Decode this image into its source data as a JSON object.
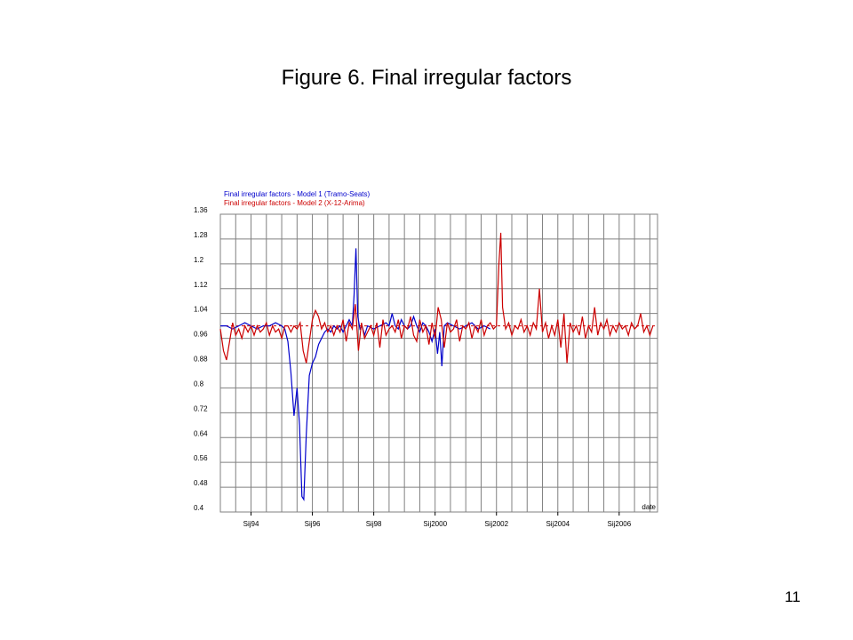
{
  "slide": {
    "title": "Figure 6. Final irregular factors",
    "page_number": "11"
  },
  "chart_data": {
    "type": "line",
    "title": "",
    "xlabel": "date",
    "ylabel": "",
    "ylim": [
      0.4,
      1.36
    ],
    "yticks": [
      "1.36",
      "1.28",
      "1.2",
      "1.12",
      "1.04",
      "0.96",
      "0.88",
      "0.8",
      "0.72",
      "0.64",
      "0.56",
      "0.48",
      "0.4"
    ],
    "xlim": [
      1993.0,
      2007.25
    ],
    "xticks": [
      {
        "label": "Sij94",
        "x": 1994.0
      },
      {
        "label": "Sij96",
        "x": 1996.0
      },
      {
        "label": "Sij98",
        "x": 1998.0
      },
      {
        "label": "Sij2000",
        "x": 2000.0
      },
      {
        "label": "Sij2002",
        "x": 2002.0
      },
      {
        "label": "Sij2004",
        "x": 2004.0
      },
      {
        "label": "Sij2006",
        "x": 2006.0
      }
    ],
    "reference_line": 1.0,
    "grid": true,
    "legend_position": "top-left",
    "series": [
      {
        "name": "Final irregular factors - Model 1 (Tramo-Seats)",
        "color": "#0000cc",
        "points": [
          [
            1993.0,
            1.0
          ],
          [
            1993.2,
            1.0
          ],
          [
            1993.4,
            0.99
          ],
          [
            1993.6,
            1.0
          ],
          [
            1993.8,
            1.01
          ],
          [
            1994.0,
            1.0
          ],
          [
            1994.2,
            0.99
          ],
          [
            1994.4,
            1.0
          ],
          [
            1994.6,
            1.0
          ],
          [
            1994.8,
            1.01
          ],
          [
            1995.0,
            1.0
          ],
          [
            1995.1,
            0.99
          ],
          [
            1995.2,
            0.95
          ],
          [
            1995.3,
            0.85
          ],
          [
            1995.4,
            0.71
          ],
          [
            1995.5,
            0.8
          ],
          [
            1995.58,
            0.68
          ],
          [
            1995.66,
            0.45
          ],
          [
            1995.72,
            0.44
          ],
          [
            1995.8,
            0.65
          ],
          [
            1995.9,
            0.84
          ],
          [
            1996.0,
            0.88
          ],
          [
            1996.1,
            0.9
          ],
          [
            1996.2,
            0.94
          ],
          [
            1996.3,
            0.96
          ],
          [
            1996.4,
            0.98
          ],
          [
            1996.5,
            0.99
          ],
          [
            1996.6,
            0.98
          ],
          [
            1996.7,
            1.0
          ],
          [
            1996.8,
            0.99
          ],
          [
            1996.9,
            1.0
          ],
          [
            1997.0,
            0.98
          ],
          [
            1997.1,
            1.0
          ],
          [
            1997.2,
            1.02
          ],
          [
            1997.3,
            1.0
          ],
          [
            1997.36,
            1.1
          ],
          [
            1997.42,
            1.25
          ],
          [
            1997.48,
            1.03
          ],
          [
            1997.55,
            0.99
          ],
          [
            1997.62,
            1.0
          ],
          [
            1997.7,
            0.97
          ],
          [
            1997.8,
            1.0
          ],
          [
            1998.0,
            0.99
          ],
          [
            1998.2,
            1.0
          ],
          [
            1998.4,
            1.01
          ],
          [
            1998.5,
            1.0
          ],
          [
            1998.6,
            1.04
          ],
          [
            1998.7,
            1.0
          ],
          [
            1998.8,
            0.99
          ],
          [
            1998.9,
            1.02
          ],
          [
            1999.0,
            1.0
          ],
          [
            1999.1,
            0.99
          ],
          [
            1999.2,
            1.0
          ],
          [
            1999.3,
            1.03
          ],
          [
            1999.4,
            1.0
          ],
          [
            1999.5,
            0.98
          ],
          [
            1999.6,
            1.01
          ],
          [
            1999.7,
            1.0
          ],
          [
            1999.8,
            0.98
          ],
          [
            1999.9,
            0.95
          ],
          [
            2000.0,
            0.99
          ],
          [
            2000.08,
            0.91
          ],
          [
            2000.15,
            0.98
          ],
          [
            2000.22,
            0.87
          ],
          [
            2000.3,
            1.0
          ],
          [
            2000.4,
            1.01
          ],
          [
            2000.6,
            1.0
          ],
          [
            2000.8,
            0.99
          ],
          [
            2001.0,
            1.0
          ],
          [
            2001.2,
            1.01
          ],
          [
            2001.4,
            0.99
          ],
          [
            2001.6,
            1.0
          ],
          [
            2001.8,
            0.99
          ],
          [
            1993.0,
            1.0
          ]
        ]
      },
      {
        "name": "Final irregular factors - Model 2 (X-12-Arima)",
        "color": "#cc0000",
        "points": [
          [
            1993.0,
            0.99
          ],
          [
            1993.1,
            0.92
          ],
          [
            1993.2,
            0.89
          ],
          [
            1993.3,
            0.95
          ],
          [
            1993.4,
            1.01
          ],
          [
            1993.5,
            0.97
          ],
          [
            1993.6,
            0.99
          ],
          [
            1993.7,
            0.96
          ],
          [
            1993.8,
            1.0
          ],
          [
            1993.9,
            0.98
          ],
          [
            1994.0,
            1.0
          ],
          [
            1994.1,
            0.97
          ],
          [
            1994.2,
            1.0
          ],
          [
            1994.3,
            0.98
          ],
          [
            1994.4,
            0.99
          ],
          [
            1994.5,
            1.01
          ],
          [
            1994.6,
            0.97
          ],
          [
            1994.7,
            1.0
          ],
          [
            1994.8,
            0.98
          ],
          [
            1994.9,
            0.99
          ],
          [
            1995.0,
            0.96
          ],
          [
            1995.1,
            1.0
          ],
          [
            1995.2,
            1.0
          ],
          [
            1995.3,
            0.98
          ],
          [
            1995.4,
            1.0
          ],
          [
            1995.5,
            0.99
          ],
          [
            1995.6,
            1.01
          ],
          [
            1995.7,
            0.92
          ],
          [
            1995.8,
            0.88
          ],
          [
            1995.9,
            0.95
          ],
          [
            1996.0,
            1.02
          ],
          [
            1996.1,
            1.05
          ],
          [
            1996.2,
            1.03
          ],
          [
            1996.3,
            0.99
          ],
          [
            1996.4,
            1.01
          ],
          [
            1996.5,
            0.98
          ],
          [
            1996.6,
            1.0
          ],
          [
            1996.7,
            0.97
          ],
          [
            1996.8,
            1.0
          ],
          [
            1996.9,
            0.98
          ],
          [
            1997.0,
            1.02
          ],
          [
            1997.1,
            0.95
          ],
          [
            1997.2,
            1.01
          ],
          [
            1997.3,
            0.99
          ],
          [
            1997.4,
            1.07
          ],
          [
            1997.5,
            0.92
          ],
          [
            1997.6,
            1.01
          ],
          [
            1997.7,
            0.96
          ],
          [
            1997.8,
            0.98
          ],
          [
            1997.9,
            1.0
          ],
          [
            1998.0,
            0.97
          ],
          [
            1998.1,
            1.01
          ],
          [
            1998.2,
            0.93
          ],
          [
            1998.3,
            1.02
          ],
          [
            1998.4,
            0.97
          ],
          [
            1998.5,
            0.99
          ],
          [
            1998.6,
            1.0
          ],
          [
            1998.7,
            0.98
          ],
          [
            1998.8,
            1.02
          ],
          [
            1998.9,
            0.96
          ],
          [
            1999.0,
            1.0
          ],
          [
            1999.1,
            0.99
          ],
          [
            1999.2,
            1.03
          ],
          [
            1999.3,
            0.97
          ],
          [
            1999.4,
            0.95
          ],
          [
            1999.5,
            1.02
          ],
          [
            1999.6,
            0.98
          ],
          [
            1999.7,
            1.0
          ],
          [
            1999.8,
            0.94
          ],
          [
            1999.9,
            1.01
          ],
          [
            2000.0,
            0.96
          ],
          [
            2000.1,
            1.06
          ],
          [
            2000.2,
            1.02
          ],
          [
            2000.3,
            0.93
          ],
          [
            2000.4,
            1.01
          ],
          [
            2000.5,
            0.98
          ],
          [
            2000.6,
            0.99
          ],
          [
            2000.7,
            1.02
          ],
          [
            2000.8,
            0.95
          ],
          [
            2000.9,
            1.0
          ],
          [
            2001.0,
            0.99
          ],
          [
            2001.1,
            1.01
          ],
          [
            2001.2,
            0.96
          ],
          [
            2001.3,
            1.0
          ],
          [
            2001.4,
            0.98
          ],
          [
            2001.5,
            1.02
          ],
          [
            2001.6,
            0.97
          ],
          [
            2001.7,
            1.0
          ],
          [
            2001.8,
            1.01
          ],
          [
            2001.9,
            0.99
          ],
          [
            2002.0,
            1.0
          ],
          [
            2002.08,
            1.2
          ],
          [
            2002.14,
            1.3
          ],
          [
            2002.2,
            1.06
          ],
          [
            2002.3,
            0.99
          ],
          [
            2002.4,
            1.01
          ],
          [
            2002.5,
            0.97
          ],
          [
            2002.6,
            1.0
          ],
          [
            2002.7,
            0.99
          ],
          [
            2002.8,
            1.02
          ],
          [
            2002.9,
            0.98
          ],
          [
            2003.0,
            1.0
          ],
          [
            2003.1,
            0.97
          ],
          [
            2003.2,
            1.01
          ],
          [
            2003.3,
            0.99
          ],
          [
            2003.4,
            1.12
          ],
          [
            2003.5,
            0.98
          ],
          [
            2003.6,
            1.01
          ],
          [
            2003.7,
            0.96
          ],
          [
            2003.8,
            1.0
          ],
          [
            2003.9,
            0.97
          ],
          [
            2004.0,
            1.02
          ],
          [
            2004.1,
            0.93
          ],
          [
            2004.2,
            1.04
          ],
          [
            2004.3,
            0.88
          ],
          [
            2004.4,
            1.01
          ],
          [
            2004.5,
            0.98
          ],
          [
            2004.6,
            1.0
          ],
          [
            2004.7,
            0.97
          ],
          [
            2004.8,
            1.03
          ],
          [
            2004.9,
            0.96
          ],
          [
            2005.0,
            1.0
          ],
          [
            2005.1,
            0.98
          ],
          [
            2005.2,
            1.06
          ],
          [
            2005.3,
            0.97
          ],
          [
            2005.4,
            1.01
          ],
          [
            2005.5,
            0.99
          ],
          [
            2005.6,
            1.02
          ],
          [
            2005.7,
            0.97
          ],
          [
            2005.8,
            1.0
          ],
          [
            2005.9,
            0.98
          ],
          [
            2006.0,
            1.01
          ],
          [
            2006.1,
            0.99
          ],
          [
            2006.2,
            1.0
          ],
          [
            2006.3,
            0.97
          ],
          [
            2006.4,
            1.01
          ],
          [
            2006.5,
            0.99
          ],
          [
            2006.6,
            1.0
          ],
          [
            2006.7,
            1.04
          ],
          [
            2006.8,
            0.98
          ],
          [
            2006.9,
            1.0
          ],
          [
            2007.0,
            0.97
          ],
          [
            2007.1,
            1.0
          ]
        ]
      }
    ]
  }
}
